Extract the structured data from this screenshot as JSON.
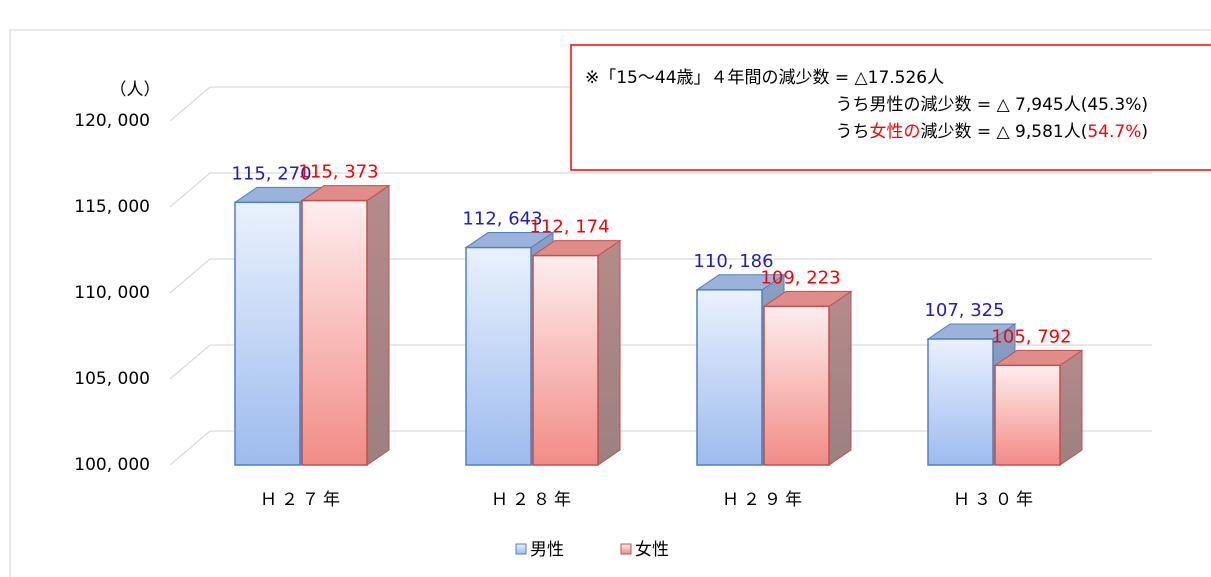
{
  "chart_data": {
    "type": "bar3d",
    "y_label": "（人）",
    "categories": [
      "Ｈ２７年",
      "Ｈ２８年",
      "Ｈ２９年",
      "Ｈ３０年"
    ],
    "series": [
      {
        "name": "男性",
        "color": "#4f81bd",
        "label_color": "#1f1fbf",
        "values": [
          115270,
          112643,
          110186,
          107325
        ],
        "value_labels": [
          "115, 270",
          "112, 643",
          "110, 186",
          "107, 325"
        ]
      },
      {
        "name": "女性",
        "color": "#c0504d",
        "label_color": "#ff0000",
        "values": [
          115373,
          112174,
          109223,
          105792
        ],
        "value_labels": [
          "115, 373",
          "112, 174",
          "109, 223",
          "105, 792"
        ]
      }
    ],
    "ylim": [
      100000,
      120000
    ],
    "yticks": [
      {
        "value": 100000,
        "label": "100, 000"
      },
      {
        "value": 105000,
        "label": "105, 000"
      },
      {
        "value": 110000,
        "label": "110, 000"
      },
      {
        "value": 115000,
        "label": "115, 000"
      },
      {
        "value": 120000,
        "label": "120, 000"
      }
    ],
    "grid": true,
    "annotation": [
      [
        "※「15～44歳」４年間の減少数 = △17.526人"
      ],
      [
        "うち男性の減少数 = △ 7,945人(45.3%)"
      ],
      [
        "うち",
        "女性の",
        "減少数 = △ 9,581人(",
        "54.7%",
        ")"
      ]
    ]
  }
}
